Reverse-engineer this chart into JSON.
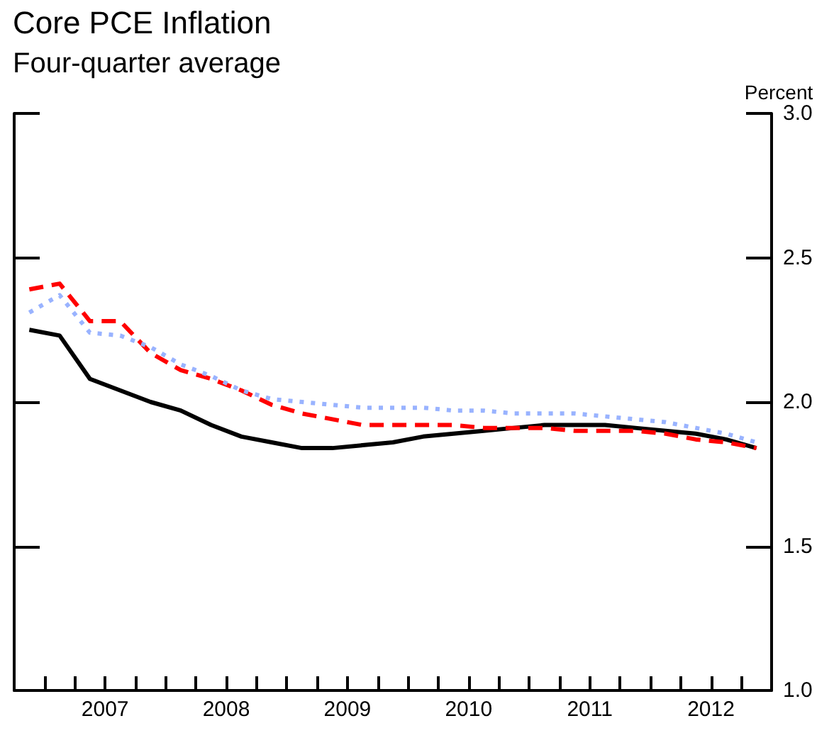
{
  "chart_data": {
    "type": "line",
    "title": "Core PCE Inflation",
    "subtitle": "Four-quarter average",
    "ylabel": "Percent",
    "x": [
      2006.875,
      2007.125,
      2007.375,
      2007.625,
      2007.875,
      2008.125,
      2008.375,
      2008.625,
      2008.875,
      2009.125,
      2009.375,
      2009.625,
      2009.875,
      2010.125,
      2010.375,
      2010.625,
      2010.875,
      2011.125,
      2011.375,
      2011.625,
      2011.875,
      2012.125,
      2012.375,
      2012.625,
      2012.875
    ],
    "series": [
      {
        "color": "#000000",
        "line_style": "solid",
        "values": [
          2.25,
          2.23,
          2.08,
          2.04,
          2.0,
          1.97,
          1.92,
          1.88,
          1.86,
          1.84,
          1.84,
          1.85,
          1.86,
          1.88,
          1.89,
          1.9,
          1.91,
          1.92,
          1.92,
          1.92,
          1.91,
          1.9,
          1.89,
          1.87,
          1.84
        ]
      },
      {
        "color": "#ff0000",
        "line_style": "dashed",
        "values": [
          2.39,
          2.41,
          2.28,
          2.28,
          2.17,
          2.11,
          2.08,
          2.04,
          1.99,
          1.96,
          1.94,
          1.92,
          1.92,
          1.92,
          1.92,
          1.91,
          1.91,
          1.91,
          1.9,
          1.9,
          1.9,
          1.89,
          1.87,
          1.86,
          1.84
        ]
      },
      {
        "color": "#99b3ff",
        "line_style": "dotted",
        "values": [
          2.31,
          2.37,
          2.24,
          2.23,
          2.19,
          2.13,
          2.09,
          2.04,
          2.01,
          2.0,
          1.99,
          1.98,
          1.98,
          1.98,
          1.97,
          1.97,
          1.96,
          1.96,
          1.96,
          1.95,
          1.94,
          1.93,
          1.91,
          1.89,
          1.86
        ]
      }
    ],
    "xlim": [
      2006.75,
      2013
    ],
    "xticks": [
      {
        "value": 2007,
        "label": null
      },
      {
        "value": 2007.25,
        "label": null
      },
      {
        "value": 2007.5,
        "label": "2007"
      },
      {
        "value": 2007.75,
        "label": null
      },
      {
        "value": 2008,
        "label": null
      },
      {
        "value": 2008.25,
        "label": null
      },
      {
        "value": 2008.5,
        "label": "2008"
      },
      {
        "value": 2008.75,
        "label": null
      },
      {
        "value": 2009,
        "label": null
      },
      {
        "value": 2009.25,
        "label": null
      },
      {
        "value": 2009.5,
        "label": "2009"
      },
      {
        "value": 2009.75,
        "label": null
      },
      {
        "value": 2010,
        "label": null
      },
      {
        "value": 2010.25,
        "label": null
      },
      {
        "value": 2010.5,
        "label": "2010"
      },
      {
        "value": 2010.75,
        "label": null
      },
      {
        "value": 2011,
        "label": null
      },
      {
        "value": 2011.25,
        "label": null
      },
      {
        "value": 2011.5,
        "label": "2011"
      },
      {
        "value": 2011.75,
        "label": null
      },
      {
        "value": 2012,
        "label": null
      },
      {
        "value": 2012.25,
        "label": null
      },
      {
        "value": 2012.5,
        "label": "2012"
      },
      {
        "value": 2012.75,
        "label": null
      }
    ],
    "ylim": [
      1.0,
      3.0
    ],
    "yticks": [
      {
        "value": 1.0,
        "label": "1.0"
      },
      {
        "value": 1.5,
        "label": "1.5"
      },
      {
        "value": 2.0,
        "label": "2.0"
      },
      {
        "value": 2.5,
        "label": "2.5"
      },
      {
        "value": 3.0,
        "label": "3.0"
      }
    ],
    "grid": false,
    "marker": "none"
  }
}
